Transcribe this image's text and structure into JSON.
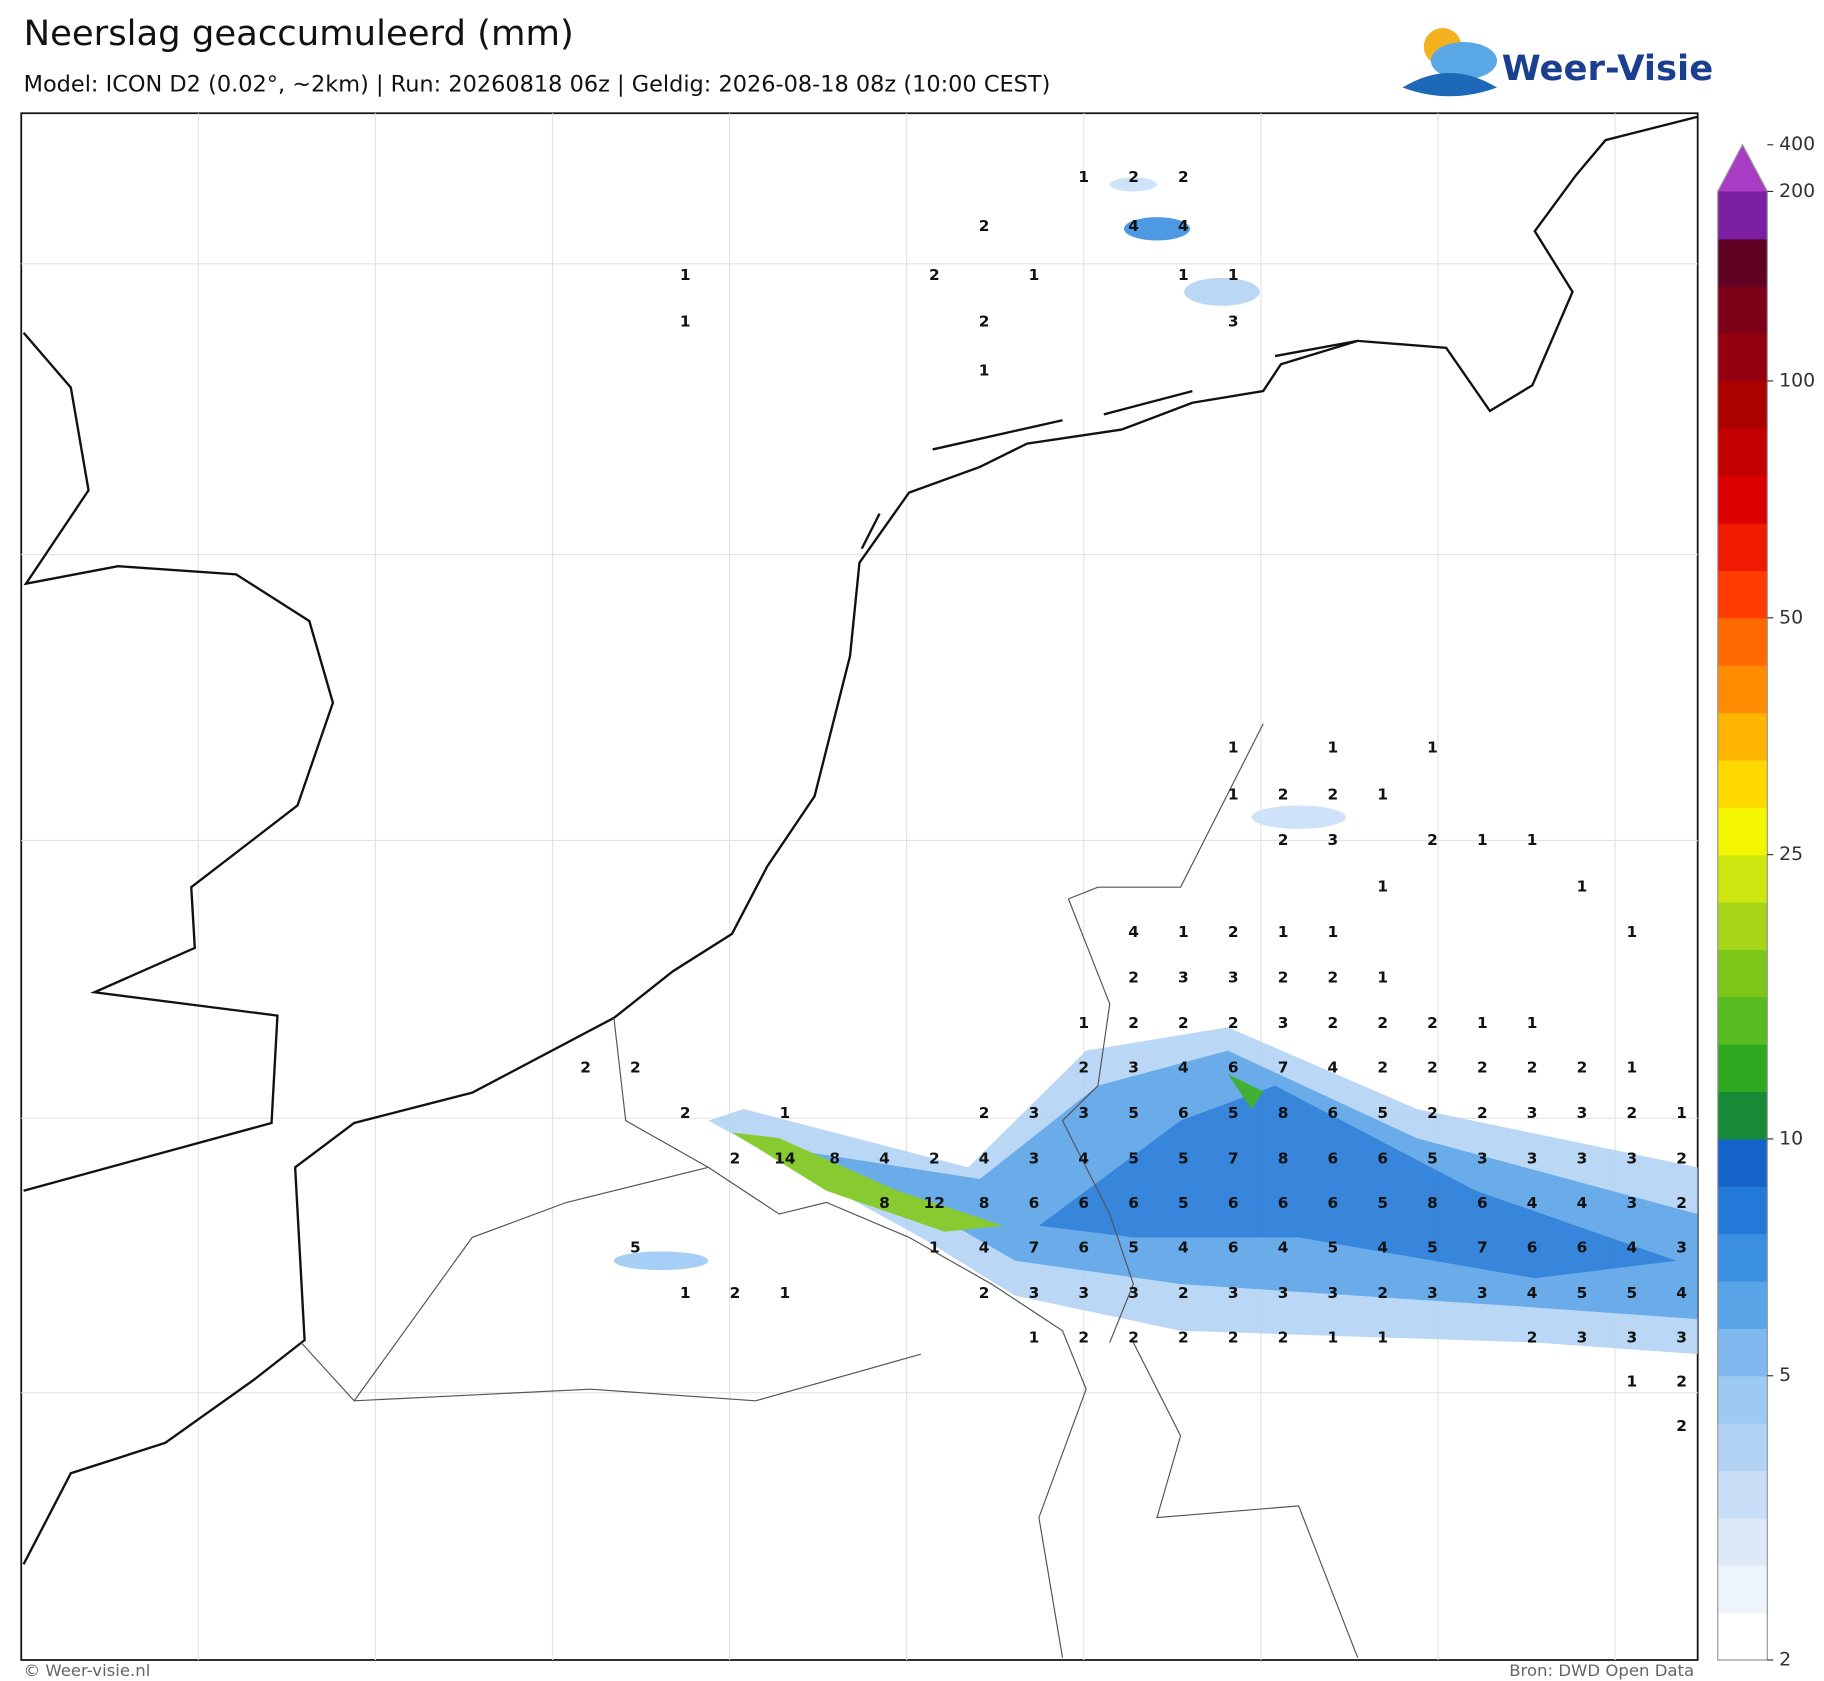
{
  "header": {
    "title": "Neerslag geaccumuleerd (mm)",
    "subtitle": "Model: ICON D2 (0.02°, ~2km)  |  Run: 20260818 06z  |  Geldig: 2026-08-18 08z (10:00 CEST)"
  },
  "logo": {
    "text": "Weer-Visie"
  },
  "map": {
    "rows": [
      [
        null,
        null,
        null,
        null,
        null,
        null,
        null,
        null,
        null,
        null,
        1,
        2,
        2,
        null,
        null,
        null,
        null,
        null,
        null,
        null,
        null,
        null,
        null
      ],
      [
        null,
        null,
        null,
        null,
        null,
        null,
        null,
        null,
        2,
        null,
        null,
        4,
        4,
        null,
        null,
        null,
        null,
        null,
        null,
        null,
        null,
        null,
        null
      ],
      [
        null,
        null,
        1,
        null,
        null,
        null,
        null,
        2,
        null,
        1,
        null,
        null,
        1,
        1,
        null,
        null,
        null,
        null,
        null,
        null,
        null,
        null,
        null
      ],
      [
        null,
        null,
        1,
        null,
        null,
        null,
        null,
        null,
        2,
        null,
        null,
        null,
        null,
        3,
        null,
        null,
        null,
        null,
        null,
        null,
        null,
        null,
        null
      ],
      [
        null,
        null,
        null,
        null,
        null,
        null,
        null,
        null,
        1,
        null,
        null,
        null,
        null,
        null,
        null,
        null,
        null,
        null,
        null,
        null,
        null,
        null,
        null
      ],
      [
        null,
        null,
        null,
        null,
        null,
        null,
        null,
        null,
        null,
        null,
        null,
        null,
        null,
        1,
        null,
        1,
        null,
        1,
        null,
        null,
        null,
        null,
        null
      ],
      [
        null,
        null,
        null,
        null,
        null,
        null,
        null,
        null,
        null,
        null,
        null,
        null,
        null,
        1,
        2,
        2,
        1,
        null,
        null,
        null,
        null,
        null,
        null
      ],
      [
        null,
        null,
        null,
        null,
        null,
        null,
        null,
        null,
        null,
        null,
        null,
        null,
        null,
        null,
        2,
        3,
        null,
        2,
        1,
        1,
        null,
        null,
        null
      ],
      [
        null,
        null,
        null,
        null,
        null,
        null,
        null,
        null,
        null,
        null,
        null,
        null,
        null,
        null,
        null,
        null,
        1,
        null,
        null,
        null,
        1,
        null,
        null
      ],
      [
        null,
        null,
        null,
        null,
        null,
        null,
        null,
        null,
        null,
        null,
        null,
        4,
        1,
        2,
        1,
        1,
        null,
        null,
        null,
        null,
        null,
        1,
        null
      ],
      [
        null,
        null,
        null,
        null,
        null,
        null,
        null,
        null,
        null,
        null,
        null,
        2,
        3,
        3,
        2,
        2,
        1,
        null,
        null,
        null,
        null,
        null,
        null
      ],
      [
        null,
        null,
        null,
        null,
        null,
        null,
        null,
        null,
        null,
        null,
        1,
        2,
        2,
        2,
        3,
        2,
        2,
        2,
        1,
        1,
        null,
        null,
        null
      ],
      [
        2,
        2,
        null,
        null,
        null,
        null,
        null,
        null,
        null,
        null,
        2,
        3,
        4,
        6,
        7,
        4,
        2,
        2,
        2,
        2,
        2,
        1,
        null
      ],
      [
        null,
        null,
        2,
        null,
        1,
        null,
        null,
        null,
        2,
        3,
        3,
        5,
        6,
        5,
        8,
        6,
        5,
        2,
        2,
        3,
        3,
        2,
        1
      ],
      [
        null,
        null,
        null,
        2,
        14,
        8,
        4,
        2,
        4,
        3,
        4,
        5,
        5,
        7,
        8,
        6,
        6,
        5,
        3,
        3,
        3,
        3,
        2
      ],
      [
        null,
        null,
        null,
        null,
        null,
        null,
        8,
        12,
        8,
        6,
        6,
        6,
        5,
        6,
        6,
        6,
        5,
        8,
        6,
        4,
        4,
        3,
        2
      ],
      [
        null,
        5,
        null,
        null,
        null,
        null,
        null,
        1,
        4,
        7,
        6,
        5,
        4,
        6,
        4,
        5,
        4,
        5,
        7,
        6,
        6,
        4,
        3
      ],
      [
        null,
        null,
        1,
        2,
        1,
        null,
        null,
        null,
        2,
        3,
        3,
        3,
        2,
        3,
        3,
        3,
        2,
        3,
        3,
        4,
        5,
        5,
        4
      ],
      [
        null,
        null,
        null,
        null,
        null,
        null,
        null,
        null,
        null,
        1,
        2,
        2,
        2,
        2,
        2,
        1,
        1,
        null,
        null,
        2,
        3,
        3,
        3
      ],
      [
        null,
        null,
        null,
        null,
        null,
        null,
        null,
        null,
        null,
        null,
        null,
        null,
        null,
        null,
        null,
        null,
        null,
        null,
        null,
        null,
        null,
        1,
        2
      ],
      [
        null,
        null,
        null,
        null,
        null,
        null,
        null,
        null,
        null,
        null,
        null,
        null,
        null,
        null,
        null,
        null,
        null,
        null,
        null,
        null,
        null,
        null,
        2
      ]
    ]
  },
  "colorbar": {
    "colors": [
      "#ffffff",
      "#eef4fc",
      "#dde9f9",
      "#c9dff8",
      "#b3d3f5",
      "#9ccaf3",
      "#7fb9ef",
      "#5aa4e8",
      "#3a8fe0",
      "#2279d8",
      "#1563c9",
      "#178a38",
      "#2ea81f",
      "#55bb20",
      "#7cc61a",
      "#a5d516",
      "#cde610",
      "#f4f500",
      "#ffd800",
      "#ffb400",
      "#ff8c00",
      "#ff6a00",
      "#ff3b00",
      "#f01a00",
      "#dc0000",
      "#c40000",
      "#ad0000",
      "#950010",
      "#7d0018",
      "#600022",
      "#7b1fa2",
      "#a93cc4",
      "#ee6fd0",
      "#fdd5ee"
    ],
    "ticks": [
      2,
      5,
      10,
      25,
      50,
      100,
      200,
      400
    ]
  },
  "footer": {
    "left": "© Weer-visie.nl",
    "right": "Bron: DWD Open Data"
  }
}
